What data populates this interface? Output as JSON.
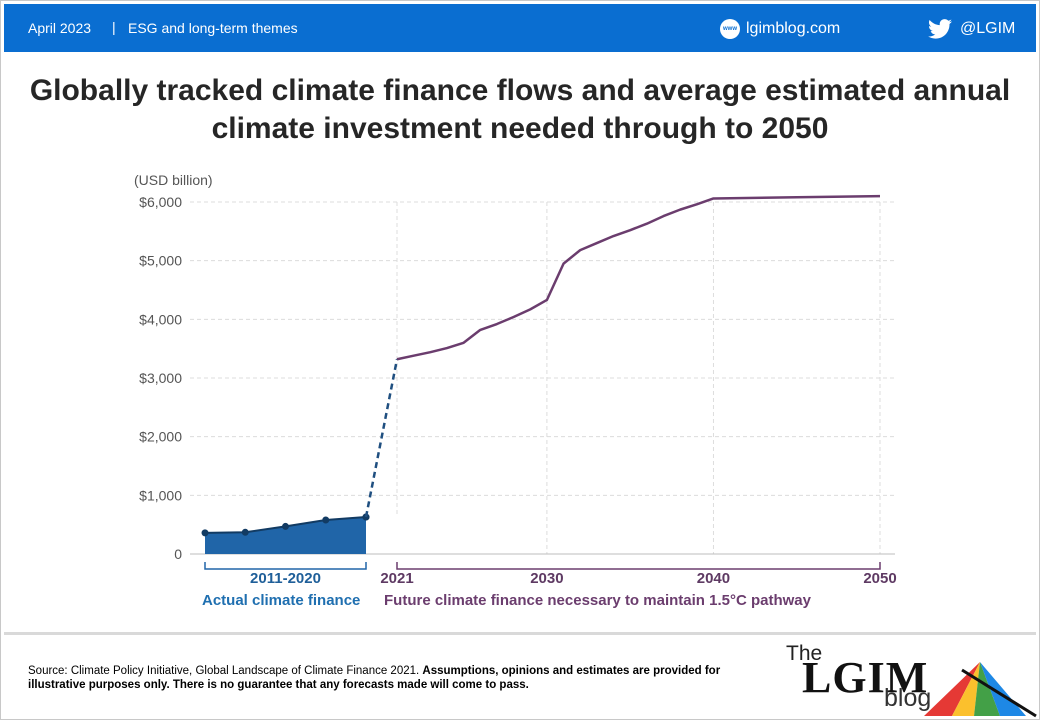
{
  "header": {
    "date": "April 2023",
    "separator": "|",
    "theme": "ESG and long-term themes",
    "site_icon": "www",
    "site": "lgimblog.com",
    "twitter_handle": "@LGIM"
  },
  "chart_data": {
    "type": "line",
    "title": "Globally tracked climate finance flows and average estimated annual climate investment needed through to 2050",
    "ylabel": "(USD billion)",
    "ylim": [
      0,
      6000
    ],
    "y_ticks": [
      "0",
      "$1,000",
      "$2,000",
      "$3,000",
      "$4,000",
      "$5,000",
      "$6,000"
    ],
    "x_ticks": [
      "2021",
      "2030",
      "2040",
      "2050"
    ],
    "actual_period_label": "2011-2020",
    "grid": true,
    "series": [
      {
        "name": "Actual climate finance",
        "style": "area-with-markers",
        "color": "#2065a8",
        "x": [
          2011,
          2013,
          2015,
          2017,
          2019
        ],
        "values": [
          360,
          370,
          470,
          580,
          630
        ]
      },
      {
        "name": "Future climate finance necessary to maintain 1.5°C pathway",
        "style": "line",
        "color": "#6b3d6e",
        "x": [
          2021,
          2022,
          2023,
          2024,
          2025,
          2026,
          2027,
          2028,
          2029,
          2030,
          2031,
          2032,
          2033,
          2034,
          2035,
          2036,
          2037,
          2038,
          2039,
          2040,
          2045,
          2050
        ],
        "values": [
          3320,
          3380,
          3440,
          3510,
          3600,
          3820,
          3920,
          4040,
          4170,
          4330,
          4950,
          5180,
          5300,
          5420,
          5520,
          5630,
          5760,
          5870,
          5960,
          6060,
          6080,
          6100
        ]
      }
    ]
  },
  "footer": {
    "source_prefix": "Source: Climate Policy Initiative, Global Landscape of Climate Finance 2021.",
    "source_bold": "Assumptions, opinions and estimates are provided for illustrative purposes only. There is no guarantee that any forecasts made will come to pass.",
    "logo_the": "The",
    "logo_lgim": "LGIM",
    "logo_blog": "blog"
  }
}
